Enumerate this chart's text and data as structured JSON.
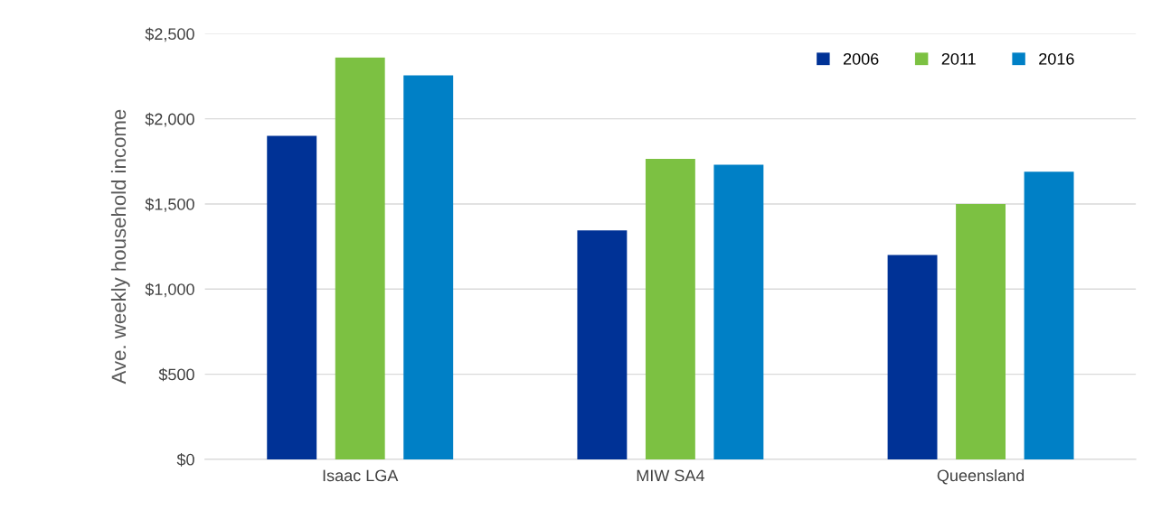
{
  "chart_data": {
    "type": "bar",
    "ylabel": "Ave. weekly household income",
    "categories": [
      "Isaac LGA",
      "MIW SA4",
      "Queensland"
    ],
    "series": [
      {
        "name": "2006",
        "color": "#003296",
        "values": [
          1900,
          1345,
          1200
        ]
      },
      {
        "name": "2011",
        "color": "#7cc142",
        "values": [
          2360,
          1765,
          1500
        ]
      },
      {
        "name": "2016",
        "color": "#0080c6",
        "values": [
          2255,
          1730,
          1690
        ]
      }
    ],
    "ylim": [
      0,
      2500
    ],
    "yticks": [
      {
        "value": 0,
        "label": "$0"
      },
      {
        "value": 500,
        "label": "$500"
      },
      {
        "value": 1000,
        "label": "$1,000"
      },
      {
        "value": 1500,
        "label": "$1,500"
      },
      {
        "value": 2000,
        "label": "$2,000"
      },
      {
        "value": 2500,
        "label": "$2,500"
      }
    ],
    "grid": "y",
    "legend": "top right"
  }
}
